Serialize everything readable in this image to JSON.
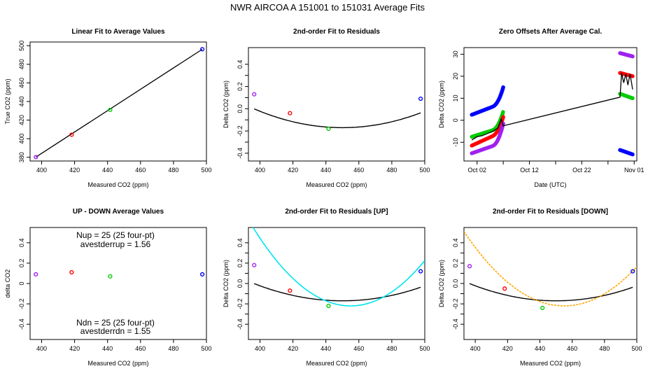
{
  "main_title": "NWR   AIRCOA A   151001 to 151031   Average Fits",
  "colors": {
    "purple": "#a020f0",
    "red": "#ff0000",
    "green": "#00cc00",
    "blue": "#0000ff",
    "black": "#000000",
    "cyan": "#00e5ee",
    "orange": "#ffa500"
  },
  "chart_data": [
    {
      "id": "p1",
      "type": "scatter",
      "title": "Linear Fit to Average Values",
      "xlabel": "Measured CO2 (ppm)",
      "ylabel": "True CO2 (ppm)",
      "xlim": [
        393,
        500
      ],
      "ylim": [
        376,
        504
      ],
      "xticks": [
        400,
        420,
        440,
        460,
        480,
        500
      ],
      "yticks": [
        380,
        400,
        420,
        440,
        460,
        480,
        500
      ],
      "points": [
        {
          "x": 396.5,
          "y": 380.2,
          "color": "purple"
        },
        {
          "x": 418.2,
          "y": 404.3,
          "color": "red"
        },
        {
          "x": 441.6,
          "y": 431.0,
          "color": "green"
        },
        {
          "x": 497.5,
          "y": 496.2,
          "color": "blue"
        }
      ],
      "fit_line": {
        "x": [
          396.5,
          497.5
        ],
        "y": [
          380.2,
          496.2
        ],
        "color": "black"
      }
    },
    {
      "id": "p2",
      "type": "scatter",
      "title": "2nd-order Fit to Residuals",
      "xlabel": "Measured CO2 (ppm)",
      "ylabel": "Delta CO2 (ppm)",
      "xlim": [
        393,
        500
      ],
      "ylim": [
        -0.47,
        0.55
      ],
      "xticks": [
        400,
        420,
        440,
        460,
        480,
        500
      ],
      "yticks": [
        -0.4,
        -0.3,
        -0.2,
        -0.1,
        0.0,
        0.1,
        0.2,
        0.3,
        0.4
      ],
      "ytick_labels": [
        "-0.4",
        "",
        "-0.2",
        "",
        "0.0",
        "",
        "0.2",
        "",
        "0.4"
      ],
      "points": [
        {
          "x": 396.5,
          "y": 0.13,
          "color": "purple"
        },
        {
          "x": 418.2,
          "y": -0.04,
          "color": "red"
        },
        {
          "x": 441.6,
          "y": -0.18,
          "color": "green"
        },
        {
          "x": 497.5,
          "y": 0.09,
          "color": "blue"
        }
      ],
      "curves": [
        {
          "name": "fit",
          "color": "black",
          "a": 5.9e-05,
          "h": 450,
          "k": -0.17,
          "xrange": [
            396.5,
            497.5
          ]
        }
      ]
    },
    {
      "id": "p3",
      "type": "line",
      "title": "Zero Offsets After Average Cal.",
      "xlabel": "Date (UTC)",
      "ylabel": "Delta CO2 (ppm)",
      "xlim": [
        -1.5,
        31.5
      ],
      "ylim": [
        -18.5,
        33
      ],
      "xticks": [
        1,
        11,
        21,
        31
      ],
      "xtick_labels": [
        "Oct 02",
        "Oct 12",
        "Oct 22",
        "Nov 01"
      ],
      "xminor": [
        6,
        16,
        26
      ],
      "yticks": [
        -10,
        0,
        10,
        20,
        30
      ],
      "series": [
        {
          "name": "blue",
          "color": "blue",
          "segments": [
            {
              "t0": 0.0,
              "t1": 6.0,
              "y0": 2.5,
              "y1": 8.0,
              "yend": 15.0
            },
            {
              "t0": 28.3,
              "t1": 30.7,
              "y0": -13.5,
              "y1": -15.5,
              "yend": -15.5
            }
          ]
        },
        {
          "name": "green",
          "color": "green",
          "segments": [
            {
              "t0": 0.0,
              "t1": 6.0,
              "y0": -7.5,
              "y1": -3.0,
              "yend": 4.0
            },
            {
              "t0": 28.3,
              "t1": 30.7,
              "y0": 12.0,
              "y1": 10.0,
              "yend": 10.0
            }
          ]
        },
        {
          "name": "red",
          "color": "red",
          "segments": [
            {
              "t0": 0.0,
              "t1": 6.0,
              "y0": -11.5,
              "y1": -5.0,
              "yend": 1.5
            },
            {
              "t0": 28.3,
              "t1": 30.7,
              "y0": 21.5,
              "y1": 20.0,
              "yend": 20.0
            }
          ]
        },
        {
          "name": "purple",
          "color": "purple",
          "segments": [
            {
              "t0": 0.0,
              "t1": 6.0,
              "y0": -15.0,
              "y1": -10.0,
              "yend": -1.5
            },
            {
              "t0": 28.3,
              "t1": 30.7,
              "y0": 30.5,
              "y1": 29.0,
              "yend": 29.0
            }
          ]
        }
      ],
      "black_line": {
        "t": [
          0.0,
          1.0,
          2.0,
          3.0,
          4.0,
          5.0,
          5.6,
          6.0,
          28.3,
          28.6,
          29.0,
          29.4,
          29.8,
          30.2,
          30.5,
          30.7
        ],
        "y": [
          -9.0,
          -7.5,
          -7.0,
          -6.0,
          -5.0,
          -3.5,
          0.5,
          -2.5,
          10.5,
          21.5,
          17.0,
          21.0,
          16.0,
          21.0,
          17.0,
          14.0
        ]
      }
    },
    {
      "id": "p4",
      "type": "scatter",
      "title": "UP - DOWN Average Values",
      "xlabel": "Measured CO2 (ppm)",
      "ylabel": "delta CO2",
      "xlim": [
        393,
        500
      ],
      "ylim": [
        -0.55,
        0.55
      ],
      "xticks": [
        400,
        420,
        440,
        460,
        480,
        500
      ],
      "yticks": [
        -0.4,
        -0.2,
        0.0,
        0.2,
        0.4
      ],
      "points": [
        {
          "x": 396.5,
          "y": 0.09,
          "color": "purple"
        },
        {
          "x": 418.2,
          "y": 0.11,
          "color": "red"
        },
        {
          "x": 441.6,
          "y": 0.07,
          "color": "green"
        },
        {
          "x": 497.5,
          "y": 0.09,
          "color": "blue"
        }
      ],
      "annotations": {
        "nup": "Nup = 25 (25 four-pt)",
        "avestderrup": "avestderrup =  1.56",
        "ndn": "Ndn = 25 (25 four-pt)",
        "avestderrdn": "avestderrdn =  1.55"
      }
    },
    {
      "id": "p5",
      "type": "scatter",
      "title": "2nd-order Fit to Residuals [UP]",
      "xlabel": "Measured CO2 (ppm)",
      "ylabel": "Delta CO2 (ppm)",
      "xlim": [
        393,
        500
      ],
      "ylim": [
        -0.55,
        0.55
      ],
      "xticks": [
        400,
        420,
        440,
        460,
        480,
        500
      ],
      "yticks": [
        -0.4,
        -0.3,
        -0.2,
        -0.1,
        0.0,
        0.1,
        0.2,
        0.3,
        0.4
      ],
      "ytick_labels": [
        "-0.4",
        "",
        "-0.2",
        "",
        "0.0",
        "",
        "0.2",
        "",
        "0.4"
      ],
      "points": [
        {
          "x": 396.5,
          "y": 0.18,
          "color": "purple"
        },
        {
          "x": 418.2,
          "y": -0.07,
          "color": "red"
        },
        {
          "x": 441.6,
          "y": -0.22,
          "color": "green"
        },
        {
          "x": 497.5,
          "y": 0.12,
          "color": "blue"
        }
      ],
      "curves": [
        {
          "name": "fit",
          "color": "black",
          "a": 5.9e-05,
          "h": 450,
          "k": -0.17,
          "xrange": [
            396.5,
            497.5
          ]
        },
        {
          "name": "up-fit",
          "color": "cyan",
          "a": 0.00022,
          "h": 455,
          "k": -0.22,
          "xrange": [
            393,
            500
          ]
        }
      ]
    },
    {
      "id": "p6",
      "type": "scatter",
      "title": "2nd-order Fit to Residuals [DOWN]",
      "xlabel": "Measured CO2 (ppm)",
      "ylabel": "Delta CO2 (ppm)",
      "xlim": [
        393,
        500
      ],
      "ylim": [
        -0.55,
        0.55
      ],
      "xticks": [
        400,
        420,
        440,
        460,
        480,
        500
      ],
      "yticks": [
        -0.4,
        -0.3,
        -0.2,
        -0.1,
        0.0,
        0.1,
        0.2,
        0.3,
        0.4
      ],
      "ytick_labels": [
        "-0.4",
        "",
        "-0.2",
        "",
        "0.0",
        "",
        "0.2",
        "",
        "0.4"
      ],
      "points": [
        {
          "x": 396.5,
          "y": 0.17,
          "color": "purple"
        },
        {
          "x": 418.2,
          "y": -0.05,
          "color": "red"
        },
        {
          "x": 441.6,
          "y": -0.24,
          "color": "green"
        },
        {
          "x": 497.5,
          "y": 0.12,
          "color": "blue"
        }
      ],
      "curves": [
        {
          "name": "fit",
          "color": "black",
          "a": 5.9e-05,
          "h": 450,
          "k": -0.17,
          "xrange": [
            396.5,
            497.5
          ]
        },
        {
          "name": "down-fit",
          "color": "orange",
          "a": 0.00019,
          "h": 455,
          "k": -0.22,
          "xrange": [
            393,
            500
          ]
        }
      ]
    }
  ]
}
